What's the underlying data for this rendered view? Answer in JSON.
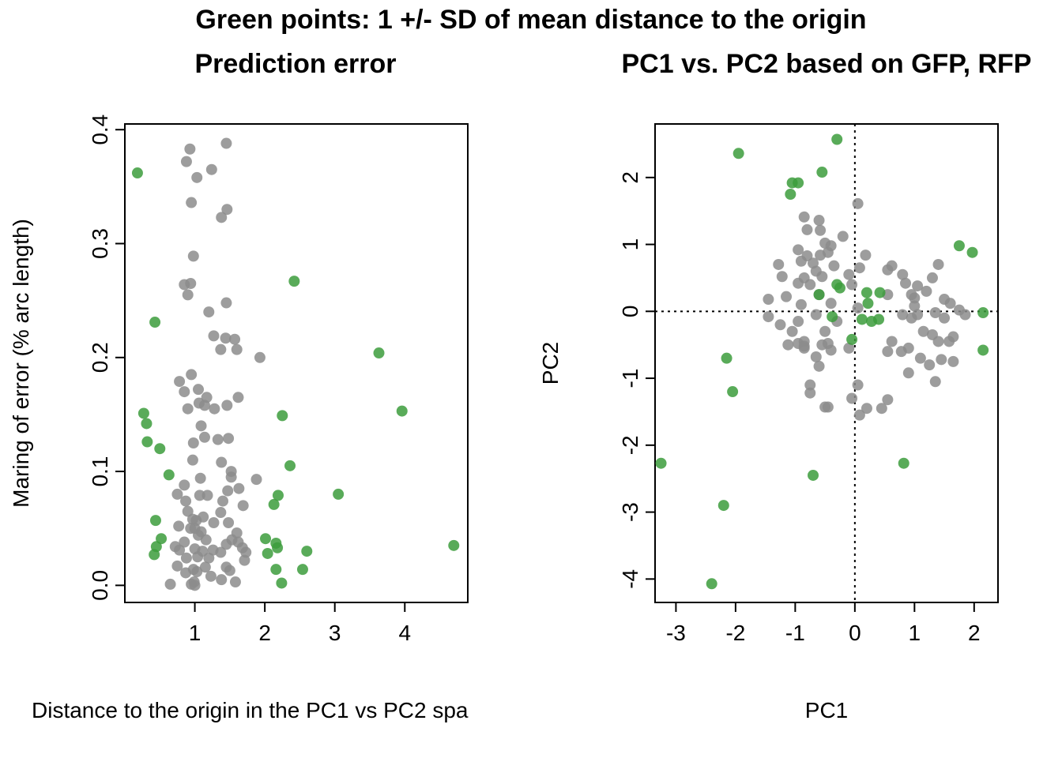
{
  "figure_title": "Green points: 1 +/- SD of mean distance to the origin",
  "colors": {
    "grey": "#8c8c8c",
    "green": "#3c9c3c"
  },
  "chart_data": [
    {
      "type": "scatter",
      "title": "Prediction error",
      "xlabel": "Distance to the origin in the PC1 vs PC2 spa",
      "ylabel": "Maring of error (% arc length)",
      "xlim": [
        0.0,
        4.9
      ],
      "ylim": [
        -0.015,
        0.405
      ],
      "xticks": [
        1,
        2,
        3,
        4
      ],
      "yticks": [
        0.0,
        0.1,
        0.2,
        0.3,
        0.4
      ],
      "ytick_labels": [
        "0.0",
        "0.1",
        "0.2",
        "0.3",
        "0.4"
      ],
      "series": [
        {
          "color": "grey",
          "points": [
            [
              0.93,
              0.383
            ],
            [
              1.45,
              0.388
            ],
            [
              0.88,
              0.372
            ],
            [
              1.24,
              0.365
            ],
            [
              1.03,
              0.358
            ],
            [
              0.95,
              0.336
            ],
            [
              1.46,
              0.33
            ],
            [
              1.38,
              0.323
            ],
            [
              0.98,
              0.289
            ],
            [
              0.94,
              0.265
            ],
            [
              0.85,
              0.264
            ],
            [
              0.9,
              0.255
            ],
            [
              1.45,
              0.248
            ],
            [
              1.2,
              0.24
            ],
            [
              1.27,
              0.219
            ],
            [
              1.57,
              0.216
            ],
            [
              1.44,
              0.217
            ],
            [
              1.37,
              0.207
            ],
            [
              1.6,
              0.207
            ],
            [
              1.93,
              0.2
            ],
            [
              0.95,
              0.185
            ],
            [
              0.78,
              0.179
            ],
            [
              1.05,
              0.172
            ],
            [
              0.85,
              0.17
            ],
            [
              1.17,
              0.165
            ],
            [
              1.62,
              0.165
            ],
            [
              1.06,
              0.16
            ],
            [
              1.14,
              0.158
            ],
            [
              1.46,
              0.158
            ],
            [
              0.9,
              0.155
            ],
            [
              1.28,
              0.155
            ],
            [
              1.09,
              0.14
            ],
            [
              1.14,
              0.13
            ],
            [
              1.48,
              0.129
            ],
            [
              1.33,
              0.128
            ],
            [
              0.98,
              0.125
            ],
            [
              0.97,
              0.11
            ],
            [
              1.38,
              0.108
            ],
            [
              1.52,
              0.1
            ],
            [
              1.52,
              0.095
            ],
            [
              1.08,
              0.094
            ],
            [
              1.88,
              0.093
            ],
            [
              0.85,
              0.088
            ],
            [
              1.47,
              0.083
            ],
            [
              1.63,
              0.085
            ],
            [
              0.75,
              0.08
            ],
            [
              1.07,
              0.079
            ],
            [
              1.18,
              0.079
            ],
            [
              0.87,
              0.074
            ],
            [
              1.4,
              0.074
            ],
            [
              1.69,
              0.07
            ],
            [
              0.9,
              0.065
            ],
            [
              1.37,
              0.064
            ],
            [
              1.12,
              0.06
            ],
            [
              0.97,
              0.058
            ],
            [
              1.02,
              0.057
            ],
            [
              1.27,
              0.055
            ],
            [
              1.48,
              0.055
            ],
            [
              0.94,
              0.05
            ],
            [
              1.0,
              0.05
            ],
            [
              1.09,
              0.047
            ],
            [
              1.6,
              0.046
            ],
            [
              0.77,
              0.052
            ],
            [
              1.05,
              0.044
            ],
            [
              1.16,
              0.04
            ],
            [
              1.53,
              0.04
            ],
            [
              0.85,
              0.038
            ],
            [
              1.45,
              0.036
            ],
            [
              1.62,
              0.038
            ],
            [
              0.72,
              0.034
            ],
            [
              1.0,
              0.032
            ],
            [
              1.26,
              0.031
            ],
            [
              1.68,
              0.033
            ],
            [
              0.78,
              0.031
            ],
            [
              1.11,
              0.03
            ],
            [
              1.37,
              0.029
            ],
            [
              1.73,
              0.029
            ],
            [
              1.04,
              0.025
            ],
            [
              0.88,
              0.024
            ],
            [
              1.2,
              0.024
            ],
            [
              1.71,
              0.022
            ],
            [
              0.98,
              0.014
            ],
            [
              1.45,
              0.016
            ],
            [
              0.75,
              0.017
            ],
            [
              1.15,
              0.016
            ],
            [
              1.03,
              0.012
            ],
            [
              1.5,
              0.013
            ],
            [
              0.87,
              0.011
            ],
            [
              1.23,
              0.008
            ],
            [
              1.38,
              0.005
            ],
            [
              0.99,
              0.003
            ],
            [
              1.58,
              0.003
            ],
            [
              0.65,
              0.001
            ],
            [
              0.95,
              0.001
            ],
            [
              1.0,
              0.0
            ]
          ]
        },
        {
          "color": "green",
          "points": [
            [
              0.18,
              0.362
            ],
            [
              0.43,
              0.231
            ],
            [
              2.42,
              0.267
            ],
            [
              3.63,
              0.204
            ],
            [
              3.96,
              0.153
            ],
            [
              0.27,
              0.151
            ],
            [
              0.31,
              0.142
            ],
            [
              2.25,
              0.149
            ],
            [
              0.32,
              0.126
            ],
            [
              0.5,
              0.12
            ],
            [
              2.36,
              0.105
            ],
            [
              0.63,
              0.097
            ],
            [
              3.05,
              0.08
            ],
            [
              2.19,
              0.079
            ],
            [
              2.13,
              0.071
            ],
            [
              0.44,
              0.057
            ],
            [
              2.01,
              0.041
            ],
            [
              0.52,
              0.041
            ],
            [
              2.16,
              0.037
            ],
            [
              0.45,
              0.034
            ],
            [
              2.18,
              0.033
            ],
            [
              4.7,
              0.035
            ],
            [
              0.42,
              0.027
            ],
            [
              2.04,
              0.028
            ],
            [
              2.6,
              0.03
            ],
            [
              2.16,
              0.014
            ],
            [
              2.54,
              0.014
            ],
            [
              2.24,
              0.002
            ]
          ]
        }
      ]
    },
    {
      "type": "scatter",
      "title": "PC1 vs. PC2 based on GFP, RFP",
      "xlabel": "PC1",
      "ylabel": "PC2",
      "xlim": [
        -3.35,
        2.4
      ],
      "ylim": [
        -4.35,
        2.8
      ],
      "xticks": [
        -3,
        -2,
        -1,
        0,
        1,
        2
      ],
      "yticks": [
        -4,
        -3,
        -2,
        -1,
        0,
        1,
        2
      ],
      "reference_lines": {
        "x": 0,
        "y": 0
      },
      "series": [
        {
          "color": "grey",
          "points": [
            [
              0.05,
              1.61
            ],
            [
              -0.85,
              1.41
            ],
            [
              -0.6,
              1.36
            ],
            [
              -0.8,
              1.22
            ],
            [
              -0.58,
              1.21
            ],
            [
              -0.2,
              1.12
            ],
            [
              -0.95,
              0.92
            ],
            [
              -0.5,
              1.02
            ],
            [
              -0.4,
              0.98
            ],
            [
              -0.45,
              0.88
            ],
            [
              -0.8,
              0.83
            ],
            [
              -0.58,
              0.84
            ],
            [
              0.18,
              0.84
            ],
            [
              -1.28,
              0.7
            ],
            [
              -0.9,
              0.75
            ],
            [
              -0.7,
              0.72
            ],
            [
              -0.35,
              0.68
            ],
            [
              0.08,
              0.65
            ],
            [
              0.62,
              0.68
            ],
            [
              0.55,
              0.62
            ],
            [
              1.4,
              0.7
            ],
            [
              -0.65,
              0.6
            ],
            [
              -1.22,
              0.52
            ],
            [
              -0.85,
              0.5
            ],
            [
              -0.55,
              0.52
            ],
            [
              -0.1,
              0.55
            ],
            [
              0.8,
              0.55
            ],
            [
              1.3,
              0.5
            ],
            [
              -0.95,
              0.42
            ],
            [
              -0.75,
              0.4
            ],
            [
              -0.05,
              0.4
            ],
            [
              0.85,
              0.42
            ],
            [
              1.05,
              0.38
            ],
            [
              1.2,
              0.3
            ],
            [
              -1.15,
              0.22
            ],
            [
              -0.6,
              0.25
            ],
            [
              0.55,
              0.25
            ],
            [
              1.0,
              0.2
            ],
            [
              -1.45,
              0.18
            ],
            [
              1.5,
              0.18
            ],
            [
              -0.9,
              0.1
            ],
            [
              -0.4,
              0.12
            ],
            [
              0.05,
              0.05
            ],
            [
              1.0,
              0.08
            ],
            [
              1.6,
              0.12
            ],
            [
              1.75,
              0.02
            ],
            [
              -1.45,
              -0.08
            ],
            [
              -0.65,
              -0.05
            ],
            [
              0.8,
              -0.05
            ],
            [
              1.05,
              -0.05
            ],
            [
              1.35,
              -0.02
            ],
            [
              1.85,
              -0.05
            ],
            [
              -1.25,
              -0.2
            ],
            [
              -0.95,
              -0.15
            ],
            [
              -0.3,
              -0.15
            ],
            [
              0.95,
              -0.1
            ],
            [
              1.5,
              -0.1
            ],
            [
              -1.05,
              -0.3
            ],
            [
              -0.5,
              -0.3
            ],
            [
              1.3,
              -0.35
            ],
            [
              1.65,
              -0.38
            ],
            [
              -0.85,
              -0.45
            ],
            [
              -1.12,
              -0.5
            ],
            [
              0.62,
              -0.45
            ],
            [
              1.4,
              -0.45
            ],
            [
              1.58,
              -0.45
            ],
            [
              -0.45,
              -0.48
            ],
            [
              -0.85,
              -0.52
            ],
            [
              -0.55,
              -0.5
            ],
            [
              0.9,
              -0.55
            ],
            [
              -0.1,
              -0.55
            ],
            [
              -0.4,
              -0.58
            ],
            [
              0.55,
              -0.6
            ],
            [
              1.1,
              -0.7
            ],
            [
              0.78,
              -0.6
            ],
            [
              -0.65,
              -0.68
            ],
            [
              1.65,
              -0.75
            ],
            [
              1.25,
              -0.8
            ],
            [
              1.45,
              -0.72
            ],
            [
              -0.6,
              -0.82
            ],
            [
              0.9,
              -0.92
            ],
            [
              1.35,
              -1.05
            ],
            [
              -0.75,
              -1.1
            ],
            [
              0.05,
              -1.1
            ],
            [
              -0.05,
              -1.3
            ],
            [
              -0.75,
              -1.22
            ],
            [
              0.55,
              -1.32
            ],
            [
              0.45,
              -1.45
            ],
            [
              0.2,
              -1.45
            ],
            [
              -0.5,
              -1.43
            ],
            [
              -0.45,
              -1.43
            ],
            [
              0.08,
              -1.55
            ],
            [
              -0.85,
              -0.55
            ],
            [
              -0.95,
              -0.48
            ],
            [
              1.15,
              -0.3
            ],
            [
              0.95,
              0.25
            ]
          ]
        },
        {
          "color": "green",
          "points": [
            [
              -0.3,
              2.57
            ],
            [
              -1.95,
              2.36
            ],
            [
              -0.55,
              2.08
            ],
            [
              -0.95,
              1.92
            ],
            [
              -1.05,
              1.92
            ],
            [
              -1.08,
              1.75
            ],
            [
              1.75,
              0.98
            ],
            [
              1.97,
              0.88
            ],
            [
              -0.3,
              0.4
            ],
            [
              -0.25,
              0.35
            ],
            [
              0.2,
              0.28
            ],
            [
              0.42,
              0.28
            ],
            [
              -0.6,
              0.25
            ],
            [
              0.22,
              0.12
            ],
            [
              2.15,
              -0.02
            ],
            [
              -0.38,
              -0.08
            ],
            [
              0.12,
              -0.12
            ],
            [
              0.28,
              -0.15
            ],
            [
              0.4,
              -0.12
            ],
            [
              -0.05,
              -0.42
            ],
            [
              2.15,
              -0.58
            ],
            [
              -2.15,
              -0.7
            ],
            [
              -2.05,
              -1.2
            ],
            [
              0.82,
              -2.27
            ],
            [
              -3.25,
              -2.27
            ],
            [
              -0.7,
              -2.45
            ],
            [
              -2.2,
              -2.9
            ],
            [
              -2.4,
              -4.07
            ]
          ]
        }
      ]
    }
  ]
}
